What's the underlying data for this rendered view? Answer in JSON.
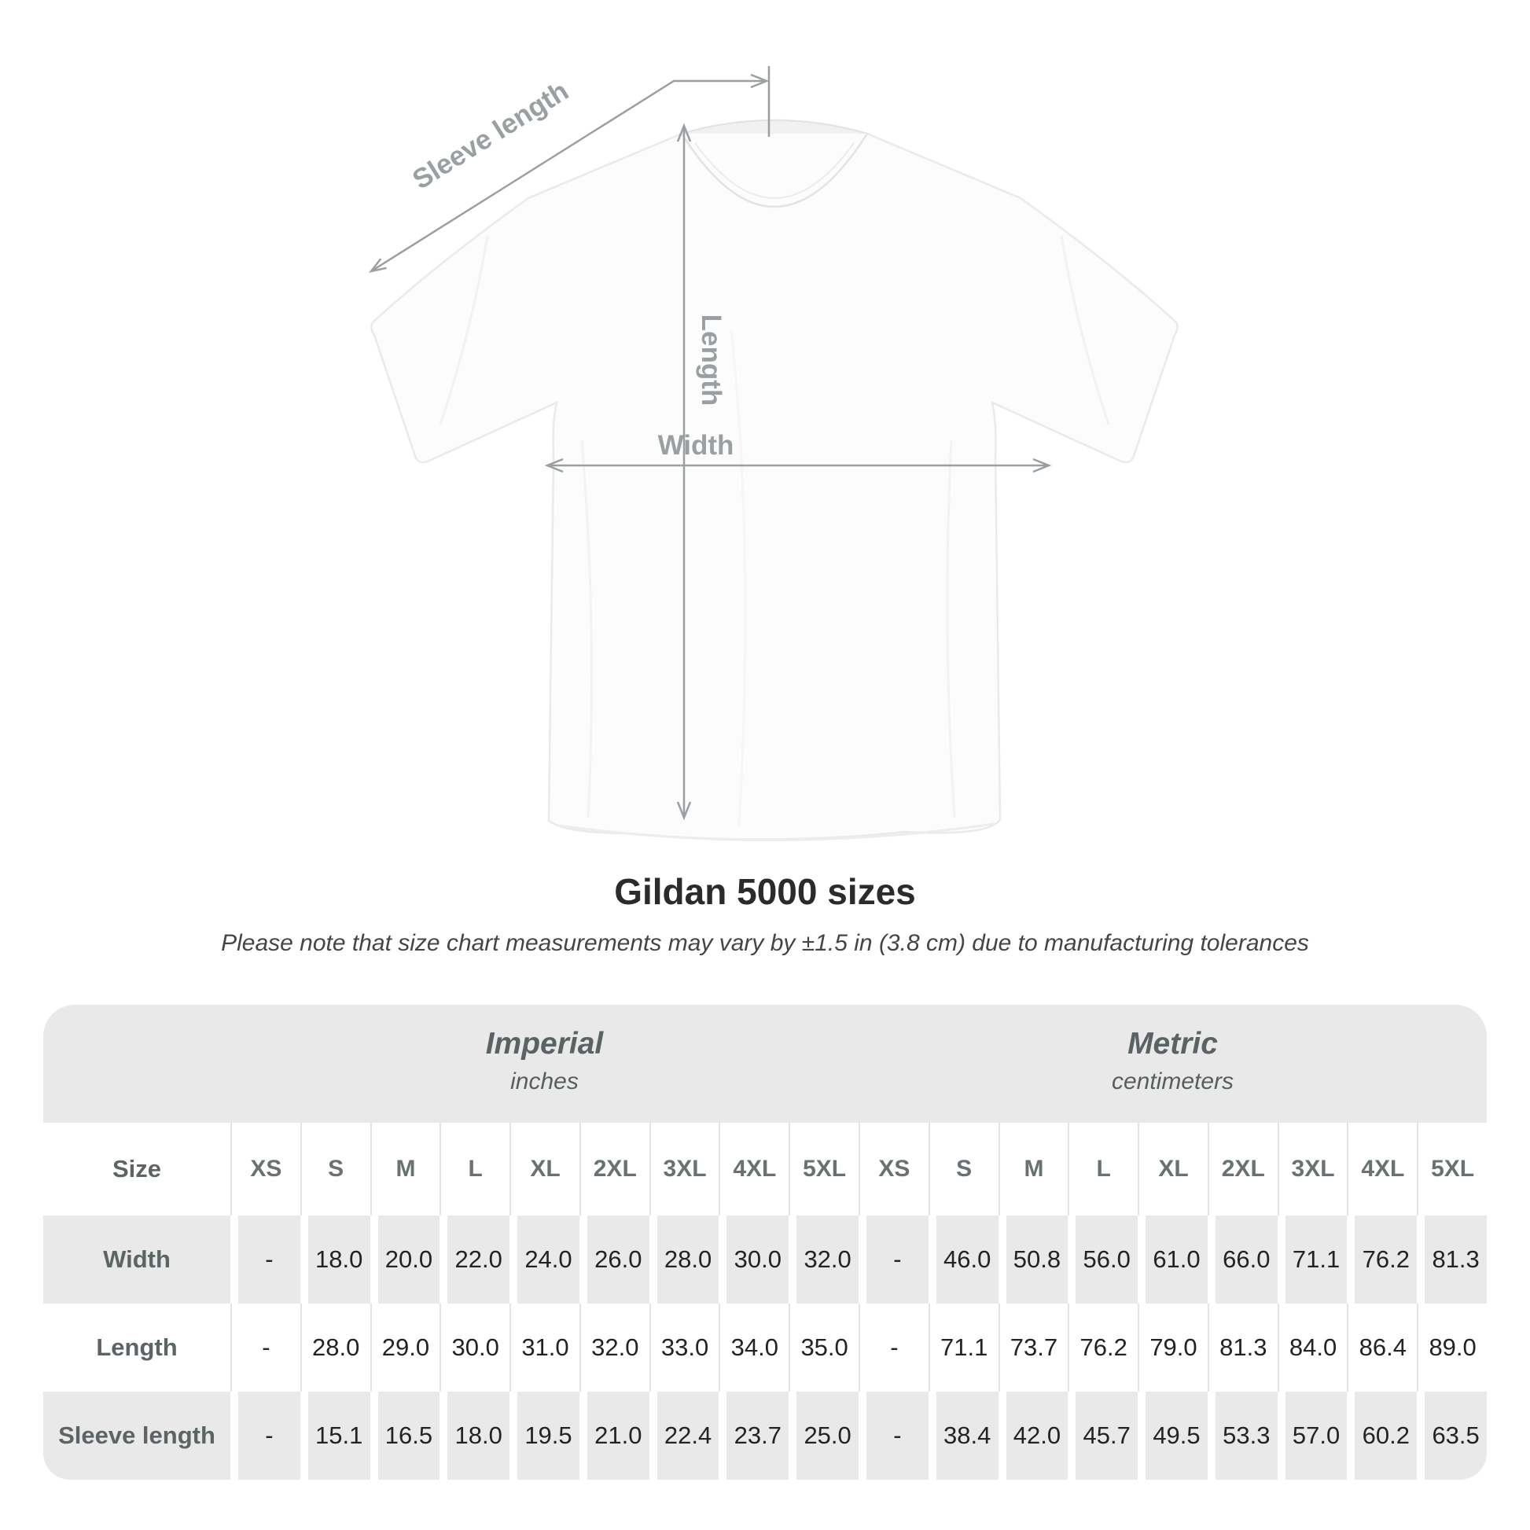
{
  "title": "Gildan 5000 sizes",
  "note": "Please note that size chart measurements may vary by ±1.5 in (3.8 cm) due to manufacturing tolerances",
  "diagram": {
    "sleeve_label": "Sleeve length",
    "length_label": "Length",
    "width_label": "Width"
  },
  "table": {
    "size_label": "Size",
    "groups": [
      {
        "name": "Imperial",
        "unit": "inches"
      },
      {
        "name": "Metric",
        "unit": "centimeters"
      }
    ]
  },
  "colors": {
    "table_gray": "#e9e9e9",
    "separator_on_white": "#e4e4e4",
    "separator_on_gray": "#ffffff",
    "value_text": "#232323",
    "label_text": "#5d6465",
    "group_text": "#5b6263",
    "diagram_gray": "#9aa0a1",
    "title_text": "#2b2b2b"
  },
  "chart_data": {
    "type": "table",
    "title": "Gildan 5000 sizes",
    "subtitle": "Please note that size chart measurements may vary by ±1.5 in (3.8 cm) due to manufacturing tolerances",
    "unit_groups": [
      {
        "name": "Imperial",
        "unit": "inches"
      },
      {
        "name": "Metric",
        "unit": "centimeters"
      }
    ],
    "sizes": [
      "XS",
      "S",
      "M",
      "L",
      "XL",
      "2XL",
      "3XL",
      "4XL",
      "5XL"
    ],
    "rows": [
      {
        "measurement": "Width",
        "imperial_in": [
          "-",
          "18.0",
          "20.0",
          "22.0",
          "24.0",
          "26.0",
          "28.0",
          "30.0",
          "32.0"
        ],
        "metric_cm": [
          "-",
          "46.0",
          "50.8",
          "56.0",
          "61.0",
          "66.0",
          "71.1",
          "76.2",
          "81.3"
        ]
      },
      {
        "measurement": "Length",
        "imperial_in": [
          "-",
          "28.0",
          "29.0",
          "30.0",
          "31.0",
          "32.0",
          "33.0",
          "34.0",
          "35.0"
        ],
        "metric_cm": [
          "-",
          "71.1",
          "73.7",
          "76.2",
          "79.0",
          "81.3",
          "84.0",
          "86.4",
          "89.0"
        ]
      },
      {
        "measurement": "Sleeve length",
        "imperial_in": [
          "-",
          "15.1",
          "16.5",
          "18.0",
          "19.5",
          "21.0",
          "22.4",
          "23.7",
          "25.0"
        ],
        "metric_cm": [
          "-",
          "38.4",
          "42.0",
          "45.7",
          "49.5",
          "53.3",
          "57.0",
          "60.2",
          "63.5"
        ]
      }
    ]
  }
}
